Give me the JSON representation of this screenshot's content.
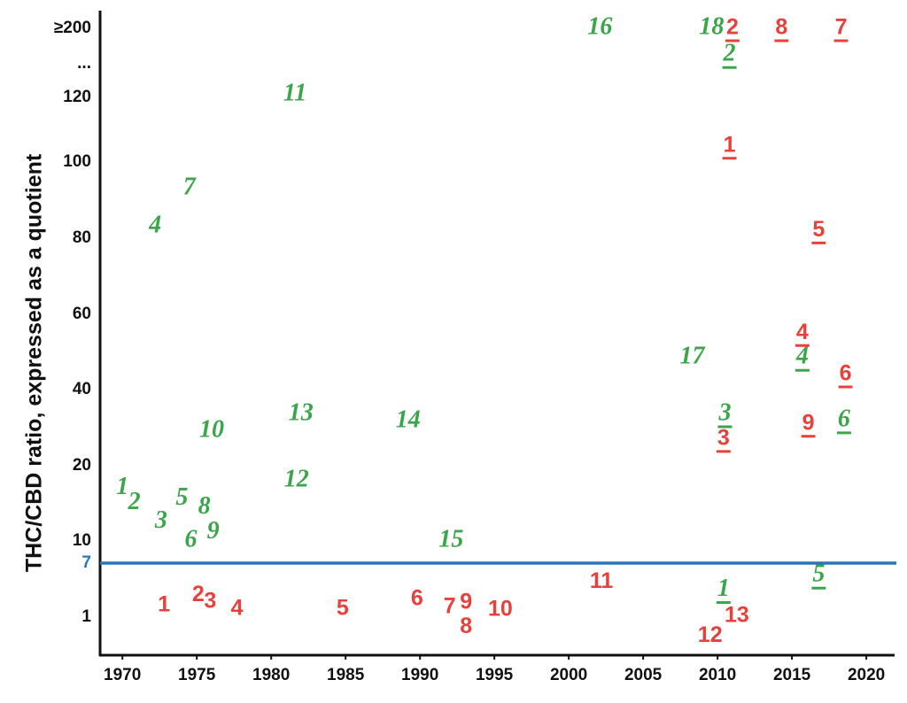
{
  "chart_data": {
    "type": "scatter",
    "y_label": "THC/CBD ratio, expressed as a quotient",
    "y_break_label": "...",
    "xlim": [
      1968.5,
      2021.9
    ],
    "xticks": [
      1970,
      1975,
      1980,
      1985,
      1990,
      1995,
      2000,
      2005,
      2010,
      2015,
      2020
    ],
    "ylim": [
      0,
      200
    ],
    "yticks": [
      {
        "value": 200,
        "label": "≥200"
      },
      120,
      100,
      80,
      60,
      40,
      20,
      10,
      7,
      1
    ],
    "reference_line": {
      "value": 7,
      "color": "#2e75b6"
    },
    "series": [
      {
        "color": "#3aa64a",
        "style": "italic",
        "underline": false,
        "labels": [
          "1",
          "2",
          "3",
          "4",
          "5",
          "6",
          "7",
          "8",
          "9",
          "10",
          "11",
          "12",
          "13",
          "14",
          "15",
          "16",
          "17",
          "18"
        ],
        "x": [
          1970.0,
          1970.8,
          1972.6,
          1972.2,
          1974.0,
          1974.6,
          1974.5,
          1975.5,
          1976.1,
          1976.0,
          1981.6,
          1981.7,
          1982.0,
          1989.2,
          1992.1,
          2002.1,
          2008.3,
          2009.6
        ],
        "values": [
          17,
          15,
          12.5,
          83,
          15.6,
          10,
          93,
          14.4,
          11.1,
          29,
          123,
          18,
          33.5,
          31.6,
          10,
          200,
          48.4,
          200
        ]
      },
      {
        "color": "#3aa64a",
        "style": "italic",
        "underline": true,
        "labels": [
          "2",
          "3",
          "1",
          "4",
          "5",
          "6"
        ],
        "x": [
          2010.8,
          2010.5,
          2010.4,
          2015.7,
          2016.8,
          2018.5
        ],
        "values": [
          169,
          33.5,
          4,
          48.4,
          5.6,
          31.9
        ]
      },
      {
        "color": "#e8403a",
        "style": "bold",
        "underline": false,
        "labels": [
          "1",
          "2",
          "3",
          "4",
          "5",
          "6",
          "7",
          "9",
          "8",
          "10",
          "11",
          "12",
          "13"
        ],
        "x": [
          1972.8,
          1975.1,
          1975.9,
          1977.7,
          1984.8,
          1989.8,
          1992.0,
          1993.1,
          1993.1,
          1995.4,
          2002.2,
          2009.5,
          2011.3
        ],
        "values": [
          2.3,
          3.4,
          2.7,
          1.9,
          1.9,
          3.0,
          2.1,
          2.6,
          0.74,
          1.8,
          4.9,
          0.5,
          1.1
        ]
      },
      {
        "color": "#e8403a",
        "style": "bold",
        "underline": true,
        "labels": [
          "2",
          "8",
          "7",
          "1",
          "5",
          "4",
          "6",
          "9",
          "3"
        ],
        "x": [
          2011.0,
          2014.3,
          2018.3,
          2010.8,
          2016.8,
          2015.7,
          2018.6,
          2016.1,
          2010.4
        ],
        "values": [
          200,
          200,
          200,
          105,
          82,
          55,
          44,
          31,
          27
        ]
      }
    ]
  }
}
